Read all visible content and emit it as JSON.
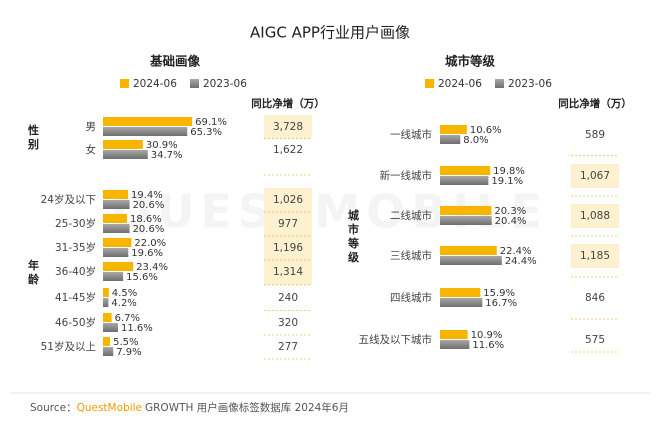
{
  "title": "AIGC APP行业用户画像",
  "watermark": "QUESTMOBILE",
  "source": {
    "label": "Source：",
    "brand": "QuestMobile",
    "text": "GROWTH 用户画像标签数据库 2024年6月"
  },
  "chart_data": [
    {
      "type": "bar",
      "orientation": "horizontal",
      "title": "基础画像",
      "xlim": [
        0,
        100
      ],
      "groups": [
        {
          "name": "性别",
          "categories": [
            "男",
            "女"
          ]
        },
        {
          "name": "年龄",
          "categories": [
            "24岁及以下",
            "25-30岁",
            "31-35岁",
            "36-40岁",
            "41-45岁",
            "46-50岁",
            "51岁及以上"
          ]
        }
      ],
      "series": [
        {
          "name": "2024-06",
          "color": "#f7b500",
          "values": [
            69.1,
            30.9,
            19.4,
            18.6,
            22.0,
            23.4,
            4.5,
            6.7,
            5.5
          ],
          "value_labels": [
            "69.1%",
            "30.9%",
            "19.4%",
            "18.6%",
            "22.0%",
            "23.4%",
            "4.5%",
            "6.7%",
            "5.5%"
          ]
        },
        {
          "name": "2023-06",
          "color": "#8a8a8a",
          "values": [
            65.3,
            34.7,
            20.6,
            20.6,
            19.6,
            15.6,
            4.2,
            11.6,
            7.9
          ],
          "value_labels": [
            "65.3%",
            "34.7%",
            "20.6%",
            "20.6%",
            "19.6%",
            "15.6%",
            "4.2%",
            "11.6%",
            "7.9%"
          ]
        }
      ],
      "net_increase": {
        "header": "同比净增（万）",
        "cells": [
          "3,728",
          "1,622",
          "1,026",
          "977",
          "1,196",
          "1,314",
          "240",
          "320",
          "277"
        ],
        "highlight": [
          true,
          false,
          true,
          true,
          true,
          true,
          false,
          false,
          false
        ]
      }
    },
    {
      "type": "bar",
      "orientation": "horizontal",
      "title": "城市等级",
      "xlim": [
        0,
        30
      ],
      "groups": [
        {
          "name": "城市等级",
          "categories": [
            "一线城市",
            "新一线城市",
            "二线城市",
            "三线城市",
            "四线城市",
            "五线及以下城市"
          ]
        }
      ],
      "series": [
        {
          "name": "2024-06",
          "color": "#f7b500",
          "values": [
            10.6,
            19.8,
            20.3,
            22.4,
            15.9,
            10.9
          ],
          "value_labels": [
            "10.6%",
            "19.8%",
            "20.3%",
            "22.4%",
            "15.9%",
            "10.9%"
          ]
        },
        {
          "name": "2023-06",
          "color": "#8a8a8a",
          "values": [
            8.0,
            19.1,
            20.4,
            24.4,
            16.7,
            11.6
          ],
          "value_labels": [
            "8.0%",
            "19.1%",
            "20.4%",
            "24.4%",
            "16.7%",
            "11.6%"
          ]
        }
      ],
      "net_increase": {
        "header": "同比净增（万）",
        "cells": [
          "589",
          "1,067",
          "1,088",
          "1,185",
          "846",
          "575"
        ],
        "highlight": [
          false,
          true,
          true,
          true,
          false,
          false
        ]
      }
    }
  ]
}
